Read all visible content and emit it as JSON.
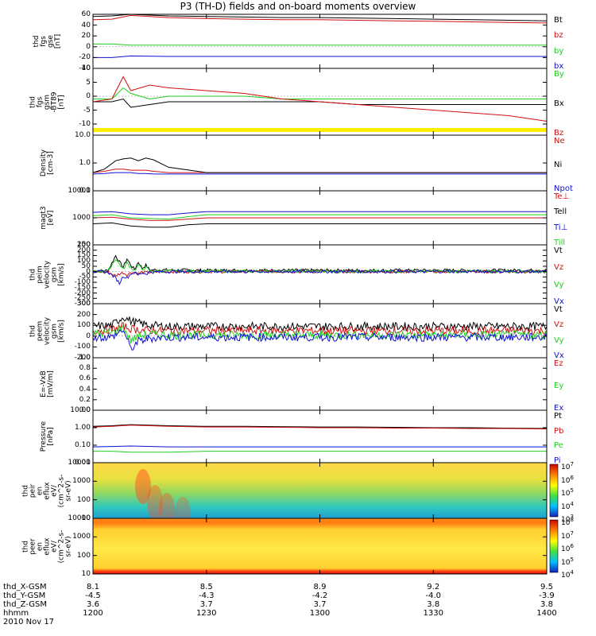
{
  "title": "P3 (TH-D) fields and on-board moments overview",
  "date": "2010 Nov 17",
  "ephemeris_labels": [
    "thd_X-GSM",
    "thd_Y-GSM",
    "thd_Z-GSM",
    "hhmm"
  ],
  "colors": {
    "black": "#000000",
    "red": "#d01010",
    "green": "#20d020",
    "blue": "#1010d0",
    "yellow": "#ffee00"
  },
  "chart_data": [
    {
      "type": "line",
      "id": "fgs_total",
      "ylabel": "thd\nfgs\ngse\n[nT]",
      "ylim": [
        -40,
        60
      ],
      "yticks": [
        "60",
        "40",
        "20",
        "0",
        "-20",
        "-40"
      ],
      "x": [
        "12:00",
        "12:05",
        "12:10",
        "12:20",
        "12:30",
        "12:40",
        "12:50",
        "13:00",
        "13:10",
        "13:20",
        "13:30",
        "13:40",
        "13:50",
        "14:00"
      ],
      "series": [
        {
          "name": "Bt",
          "color": "black",
          "values": [
            56,
            57,
            60,
            57,
            56,
            55,
            54,
            54,
            53,
            52,
            51,
            50,
            49,
            48
          ]
        },
        {
          "name": "bz",
          "color": "red",
          "values": [
            50,
            51,
            58,
            54,
            52,
            51,
            50,
            50,
            49,
            48,
            47,
            46,
            45,
            44
          ]
        },
        {
          "name": "by",
          "color": "green",
          "values": [
            5,
            5,
            3,
            3,
            3,
            3,
            3,
            3,
            3,
            3,
            3,
            3,
            3,
            3
          ]
        },
        {
          "name": "bx",
          "color": "blue",
          "values": [
            -20,
            -20,
            -17,
            -18,
            -18,
            -18,
            -18,
            -18,
            -18,
            -18,
            -18,
            -18,
            -18,
            -18
          ]
        }
      ]
    },
    {
      "type": "line",
      "id": "fgs_detrended",
      "ylabel": "thd\nfgs\ngsm\n-BT89\n[nT]",
      "ylim": [
        -14,
        10
      ],
      "yticks": [
        "10",
        "5",
        "0",
        "-5",
        "-10"
      ],
      "x": [
        "12:00",
        "12:05",
        "12:08",
        "12:10",
        "12:15",
        "12:20",
        "12:30",
        "12:40",
        "12:50",
        "13:00",
        "13:10",
        "13:20",
        "13:30",
        "13:40",
        "13:50",
        "14:00"
      ],
      "series": [
        {
          "name": "By",
          "color": "green",
          "values": [
            -1,
            -1,
            3,
            1,
            -1,
            0,
            0,
            0,
            -1,
            -1,
            -1,
            -1,
            -1,
            -1,
            -1,
            -1
          ]
        },
        {
          "name": "Bx",
          "color": "black",
          "values": [
            -2,
            -2,
            -1,
            -4,
            -3,
            -2,
            -2,
            -2,
            -2,
            -2,
            -3,
            -3,
            -3,
            -3,
            -3,
            -3
          ]
        },
        {
          "name": "Bz",
          "color": "red",
          "values": [
            -2,
            -1,
            7,
            2,
            4,
            3,
            2,
            1,
            -1,
            -2,
            -3,
            -4,
            -5,
            -6,
            -7,
            -9
          ]
        }
      ]
    },
    {
      "type": "line",
      "id": "density",
      "ylabel": "Density\n[cm-3]",
      "yscale": "log",
      "ylim": [
        0.1,
        10
      ],
      "yticks": [
        "10.0",
        "1.0",
        "0.1"
      ],
      "x": [
        "12:00",
        "12:03",
        "12:06",
        "12:08",
        "12:10",
        "12:12",
        "12:14",
        "12:16",
        "12:20",
        "12:30",
        "12:40",
        "12:50",
        "13:00",
        "13:10",
        "13:20",
        "13:30",
        "13:40",
        "13:50",
        "14:00"
      ],
      "series": [
        {
          "name": "Ne",
          "color": "red",
          "values": [
            0.45,
            0.5,
            0.6,
            0.6,
            0.55,
            0.55,
            0.55,
            0.5,
            0.45,
            0.45,
            0.45,
            0.45,
            0.45,
            0.45,
            0.45,
            0.45,
            0.45,
            0.45,
            0.45
          ]
        },
        {
          "name": "Ni",
          "color": "black",
          "values": [
            0.45,
            0.6,
            1.2,
            1.4,
            1.5,
            1.2,
            1.5,
            1.3,
            0.7,
            0.45,
            0.45,
            0.45,
            0.45,
            0.45,
            0.45,
            0.45,
            0.45,
            0.45,
            0.45
          ]
        },
        {
          "name": "Npot",
          "color": "blue",
          "values": [
            0.4,
            0.42,
            0.45,
            0.45,
            0.45,
            0.42,
            0.42,
            0.4,
            0.4,
            0.4,
            0.4,
            0.4,
            0.4,
            0.4,
            0.4,
            0.4,
            0.4,
            0.4,
            0.4
          ]
        }
      ]
    },
    {
      "type": "line",
      "id": "temperature",
      "ylabel": "magt3\n[eV]",
      "yscale": "log",
      "ylim": [
        100,
        10000
      ],
      "yticks": [
        "10000",
        "1000",
        "100"
      ],
      "x": [
        "12:00",
        "12:05",
        "12:10",
        "12:15",
        "12:20",
        "12:25",
        "12:30",
        "12:40",
        "12:50",
        "13:00",
        "13:10",
        "13:20",
        "13:30",
        "13:40",
        "13:50",
        "14:00"
      ],
      "series": [
        {
          "name": "Te⊥",
          "color": "red",
          "values": [
            1000,
            1050,
            900,
            800,
            800,
            900,
            1000,
            1000,
            1000,
            1000,
            1000,
            1000,
            1000,
            1000,
            1000,
            1000
          ]
        },
        {
          "name": "Tell",
          "color": "black",
          "values": [
            600,
            650,
            500,
            450,
            450,
            550,
            600,
            600,
            600,
            600,
            600,
            600,
            600,
            600,
            600,
            600
          ]
        },
        {
          "name": "Ti⊥",
          "color": "blue",
          "values": [
            1600,
            1700,
            1400,
            1300,
            1300,
            1500,
            1700,
            1700,
            1700,
            1700,
            1700,
            1700,
            1700,
            1700,
            1700,
            1700
          ]
        },
        {
          "name": "Till",
          "color": "green",
          "values": [
            1200,
            1300,
            1000,
            950,
            900,
            1100,
            1300,
            1300,
            1300,
            1300,
            1300,
            1300,
            1300,
            1300,
            1300,
            1300
          ]
        }
      ]
    },
    {
      "type": "line",
      "id": "peim_velocity",
      "ylabel": "thd\npeim\nvelocity\ngsm\n[km/s]",
      "ylim": [
        -300,
        250
      ],
      "yticks": [
        "250",
        "200",
        "150",
        "100",
        "50",
        "0",
        "-50",
        "-100",
        "-150",
        "-200",
        "-250",
        "-300"
      ],
      "x": [
        "12:00",
        "12:04",
        "12:06",
        "12:07",
        "12:08",
        "12:09",
        "12:10",
        "12:11",
        "12:12",
        "12:13",
        "12:14",
        "12:15",
        "12:20",
        "12:30",
        "12:40",
        "13:00",
        "13:20",
        "13:40",
        "14:00"
      ],
      "series": [
        {
          "name": "Vt",
          "color": "black",
          "values": [
            5,
            10,
            150,
            90,
            40,
            120,
            60,
            20,
            90,
            30,
            60,
            15,
            15,
            12,
            12,
            12,
            12,
            12,
            12
          ]
        },
        {
          "name": "Vz",
          "color": "red",
          "values": [
            0,
            -5,
            -40,
            -20,
            -10,
            -30,
            -10,
            -5,
            -20,
            -5,
            -10,
            -5,
            0,
            0,
            0,
            0,
            0,
            0,
            0
          ]
        },
        {
          "name": "Vy",
          "color": "green",
          "values": [
            0,
            5,
            120,
            70,
            20,
            80,
            40,
            10,
            60,
            20,
            40,
            5,
            5,
            3,
            3,
            3,
            3,
            3,
            3
          ]
        },
        {
          "name": "Vx",
          "color": "blue",
          "values": [
            0,
            -5,
            -60,
            -110,
            -40,
            -60,
            -20,
            -10,
            -30,
            -10,
            -20,
            -5,
            0,
            0,
            0,
            0,
            0,
            0,
            0
          ]
        }
      ]
    },
    {
      "type": "line",
      "id": "peem_velocity",
      "ylabel": "thd\npeem\nvelocity\ngsm\n[km/s]",
      "ylim": [
        -200,
        300
      ],
      "yticks": [
        "300",
        "200",
        "100",
        "0",
        "-100",
        "-200"
      ],
      "x": [
        "12:00",
        "12:05",
        "12:08",
        "12:10",
        "12:12",
        "12:15",
        "12:20",
        "12:30",
        "12:40",
        "12:50",
        "13:00",
        "13:10",
        "13:20",
        "13:30",
        "13:40",
        "13:50",
        "14:00"
      ],
      "series": [
        {
          "name": "Vt",
          "color": "black",
          "values": [
            90,
            100,
            180,
            140,
            120,
            100,
            90,
            90,
            90,
            90,
            90,
            90,
            90,
            90,
            90,
            90,
            90
          ]
        },
        {
          "name": "Vz",
          "color": "red",
          "values": [
            50,
            60,
            90,
            70,
            60,
            50,
            50,
            50,
            50,
            50,
            50,
            50,
            50,
            50,
            50,
            50,
            50
          ]
        },
        {
          "name": "Vy",
          "color": "green",
          "values": [
            20,
            30,
            80,
            -40,
            0,
            20,
            10,
            10,
            10,
            10,
            10,
            10,
            10,
            10,
            10,
            10,
            10
          ]
        },
        {
          "name": "Vx",
          "color": "blue",
          "values": [
            -10,
            -10,
            60,
            -120,
            -50,
            -20,
            -10,
            -10,
            -10,
            -10,
            -10,
            -10,
            -10,
            -10,
            -10,
            -10,
            -10
          ]
        }
      ]
    },
    {
      "type": "line",
      "id": "efield",
      "ylabel": "E=-VxB\n[mV/m]",
      "ylim": [
        0,
        1
      ],
      "yticks": [
        "1.0",
        "0.8",
        "0.6",
        "0.4",
        "0.2",
        "0.0"
      ],
      "x": [],
      "series": [
        {
          "name": "Ez",
          "color": "red",
          "values": []
        },
        {
          "name": "Ey",
          "color": "green",
          "values": []
        },
        {
          "name": "Ex",
          "color": "blue",
          "values": []
        }
      ]
    },
    {
      "type": "line",
      "id": "pressure",
      "ylabel": "Pressure\n[nPa]",
      "yscale": "log",
      "ylim": [
        0.01,
        10
      ],
      "yticks": [
        "10.00",
        "1.00",
        "0.10",
        "0.01"
      ],
      "x": [
        "12:00",
        "12:05",
        "12:10",
        "12:20",
        "12:30",
        "12:40",
        "12:50",
        "13:00",
        "13:10",
        "13:20",
        "13:30",
        "13:40",
        "13:50",
        "14:00"
      ],
      "series": [
        {
          "name": "Pt",
          "color": "black",
          "values": [
            1.2,
            1.3,
            1.5,
            1.3,
            1.2,
            1.2,
            1.15,
            1.1,
            1.1,
            1.05,
            1.0,
            1.0,
            0.95,
            0.9
          ]
        },
        {
          "name": "Pb",
          "color": "red",
          "values": [
            1.1,
            1.2,
            1.4,
            1.2,
            1.1,
            1.1,
            1.05,
            1.0,
            1.0,
            0.95,
            0.95,
            0.9,
            0.9,
            0.85
          ]
        },
        {
          "name": "Pe",
          "color": "green",
          "values": [
            0.045,
            0.045,
            0.04,
            0.04,
            0.045,
            0.045,
            0.045,
            0.045,
            0.045,
            0.045,
            0.045,
            0.045,
            0.045,
            0.045
          ]
        },
        {
          "name": "Pi",
          "color": "blue",
          "values": [
            0.08,
            0.085,
            0.09,
            0.08,
            0.08,
            0.08,
            0.08,
            0.08,
            0.08,
            0.08,
            0.08,
            0.08,
            0.08,
            0.08
          ]
        }
      ]
    },
    {
      "type": "heatmap",
      "id": "ion_spectrogram",
      "ylabel": "thd\npeir\nen\neflux\neV/\n(cm^2-s-\nsr-eV)",
      "yscale": "log",
      "ylim": [
        10,
        10000
      ],
      "yticks": [
        "10000",
        "1000",
        "100",
        "10"
      ],
      "colorbar": {
        "scale": "log",
        "range": [
          1000,
          10000000
        ],
        "ticks": [
          "10^7",
          "10^6",
          "10^5",
          "10^4",
          "10^3"
        ]
      }
    },
    {
      "type": "heatmap",
      "id": "electron_spectrogram",
      "ylabel": "thd\npeer\nen\neflux\neV/\n(cm^2-s-\nsr-eV)",
      "yscale": "log",
      "ylim": [
        10,
        10000
      ],
      "yticks": [
        "10000",
        "1000",
        "100",
        "10"
      ],
      "colorbar": {
        "scale": "log",
        "range": [
          10000,
          100000000
        ],
        "ticks": [
          "10^8",
          "10^7",
          "10^6",
          "10^5",
          "10^4"
        ]
      }
    }
  ],
  "xaxis": {
    "range": [
      "12:00",
      "14:00"
    ],
    "columns": [
      {
        "X": "8.1",
        "Y": "-4.5",
        "Z": "3.6",
        "hhmm": "1200"
      },
      {
        "X": "8.5",
        "Y": "-4.3",
        "Z": "3.7",
        "hhmm": "1230"
      },
      {
        "X": "8.9",
        "Y": "-4.2",
        "Z": "3.7",
        "hhmm": "1300"
      },
      {
        "X": "9.2",
        "Y": "-4.0",
        "Z": "3.8",
        "hhmm": "1330"
      },
      {
        "X": "9.5",
        "Y": "-3.9",
        "Z": "3.8",
        "hhmm": "1400"
      }
    ]
  }
}
